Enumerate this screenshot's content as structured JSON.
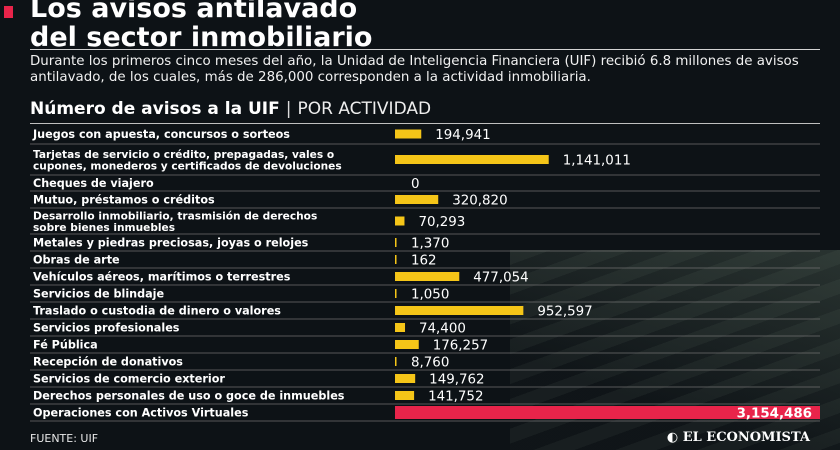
{
  "header": {
    "title_line1": "Los avisos antilavado",
    "title_line2": "del sector inmobiliario",
    "intro": "Durante los primeros cinco meses del año, la Unidad de Inteligencia Financiera (UIF) recibió 6.8 millones de avisos antilavado, de los cuales, más de 286,000 corresponden a la actividad inmobiliaria."
  },
  "colors": {
    "accent": "#e8244a",
    "bar": "#f5c518",
    "highlight": "#e8244a"
  },
  "chart_data": {
    "type": "bar",
    "title": "Número de avisos a la UIF",
    "subtitle": "POR ACTIVIDAD",
    "xlim": [
      0,
      3154486
    ],
    "categories": [
      "Juegos con apuesta, concursos o sorteos",
      "Tarjetas de servicio o crédito, prepagadas, vales o cupones, monederos y certificados de devoluciones",
      "Cheques de viajero",
      "Mutuo, préstamos o créditos",
      "Desarrollo inmobiliario, trasmisión de derechos sobre bienes inmuebles",
      "Metales y piedras preciosas, joyas o relojes",
      "Obras de arte",
      "Vehículos aéreos, marítimos o terrestres",
      "Servicios de blindaje",
      "Traslado o custodia de dinero o valores",
      "Servicios profesionales",
      "Fé Pública",
      "Recepción de donativos",
      "Servicios de comercio exterior",
      "Derechos personales de uso o goce de inmuebles",
      "Operaciones con Activos Virtuales"
    ],
    "values": [
      194941,
      1141011,
      0,
      320820,
      70293,
      1370,
      162,
      477054,
      1050,
      952597,
      74400,
      176257,
      8760,
      149762,
      141752,
      3154486
    ],
    "value_labels": [
      "194,941",
      "1,141,011",
      "0",
      "320,820",
      "70,293",
      "1,370",
      "162",
      "477,054",
      "1,050",
      "952,597",
      "74,400",
      "176,257",
      "8,760",
      "149,762",
      "141,752",
      "3,154,486"
    ],
    "highlight_index": 15
  },
  "footer": {
    "source": "FUENTE: UIF",
    "logo": "EL ECONOMISTA"
  }
}
